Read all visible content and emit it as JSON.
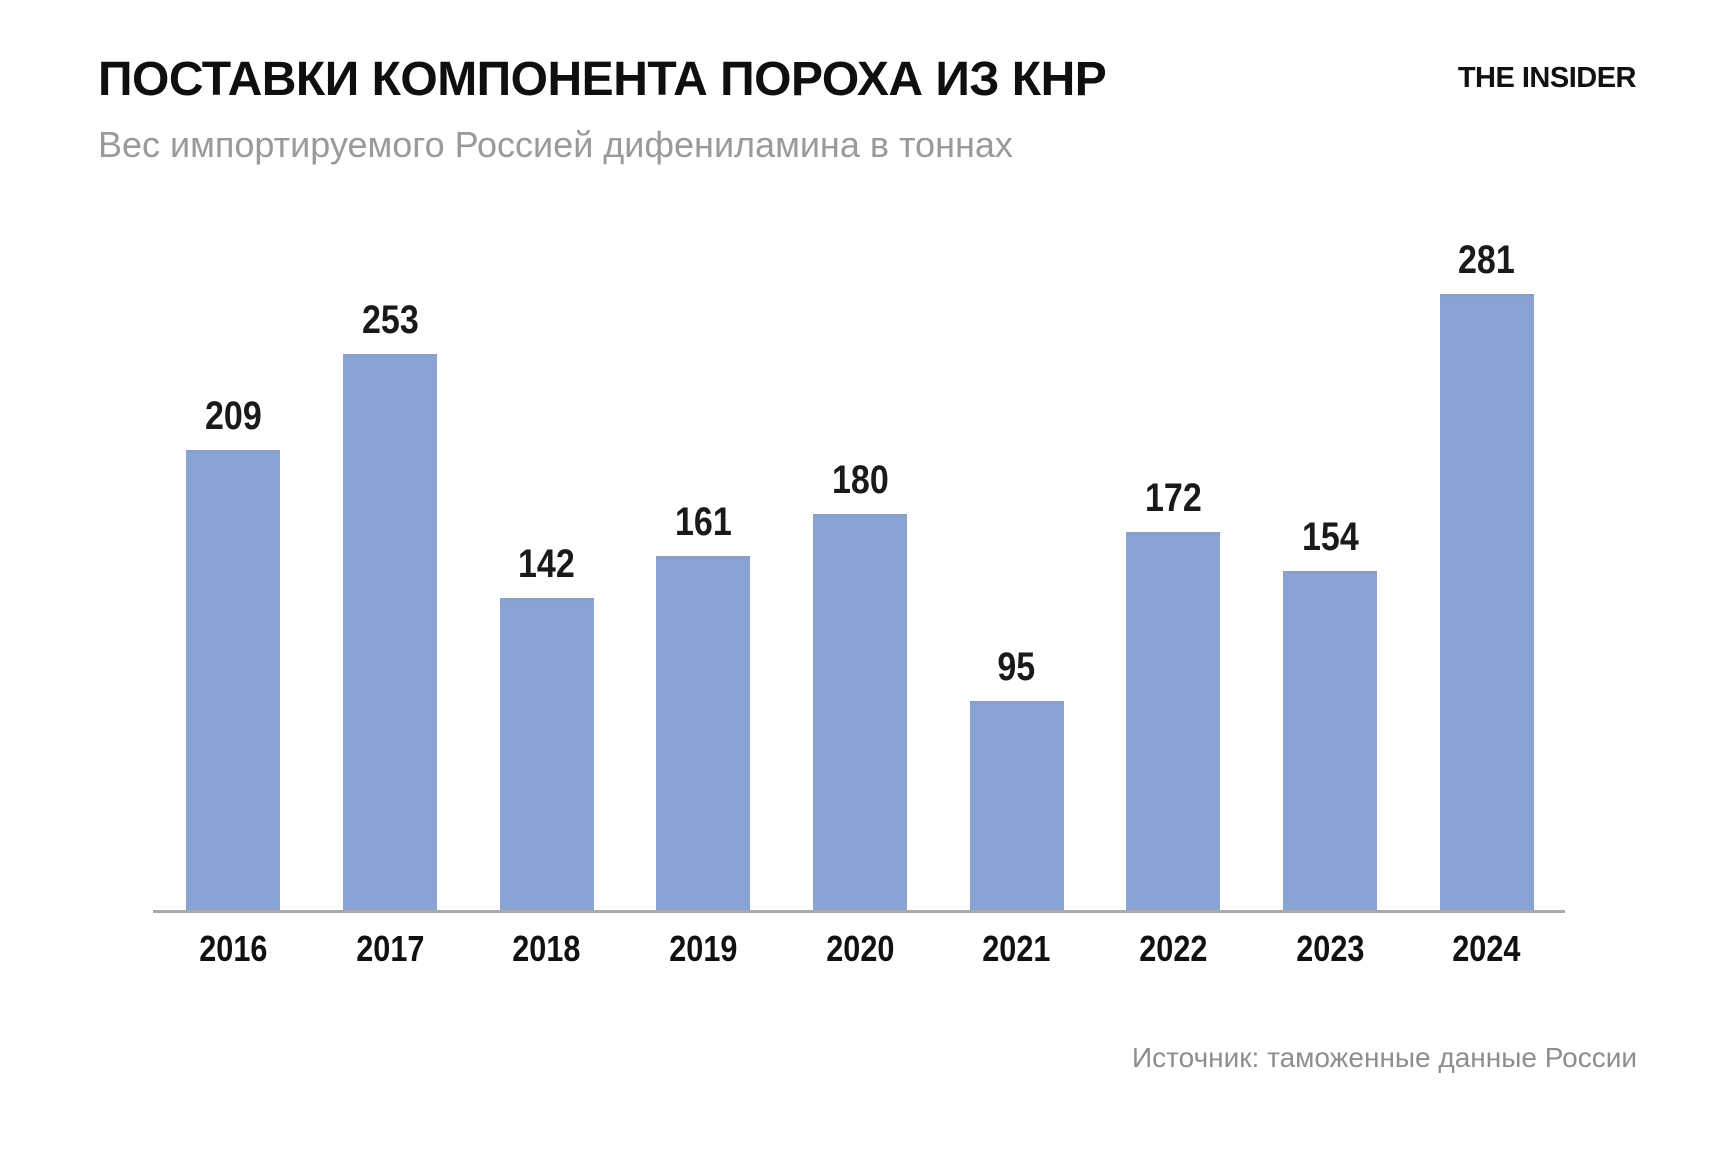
{
  "header": {
    "title": "ПОСТАВКИ КОМПОНЕНТА ПОРОХА ИЗ КНР",
    "subtitle": "Вес импортируемого Россией дифениламина в тоннах",
    "logo": "THE INSIDER"
  },
  "chart_data": {
    "type": "bar",
    "title": "ПОСТАВКИ КОМПОНЕНТА ПОРОХА ИЗ КНР",
    "subtitle": "Вес импортируемого Россией дифениламина в тоннах",
    "categories": [
      "2016",
      "2017",
      "2018",
      "2019",
      "2020",
      "2021",
      "2022",
      "2023",
      "2024"
    ],
    "values": [
      209,
      253,
      142,
      161,
      180,
      95,
      172,
      154,
      281
    ],
    "xlabel": "",
    "ylabel": "",
    "ylim": [
      0,
      281
    ],
    "grid": false,
    "legend": false,
    "data_labels": true,
    "bar_color": "#88A4D5",
    "axis_color": "#A9A9A9",
    "label_color": "#1A1A1A"
  },
  "footer": {
    "source": "Источник: таможенные данные России"
  }
}
